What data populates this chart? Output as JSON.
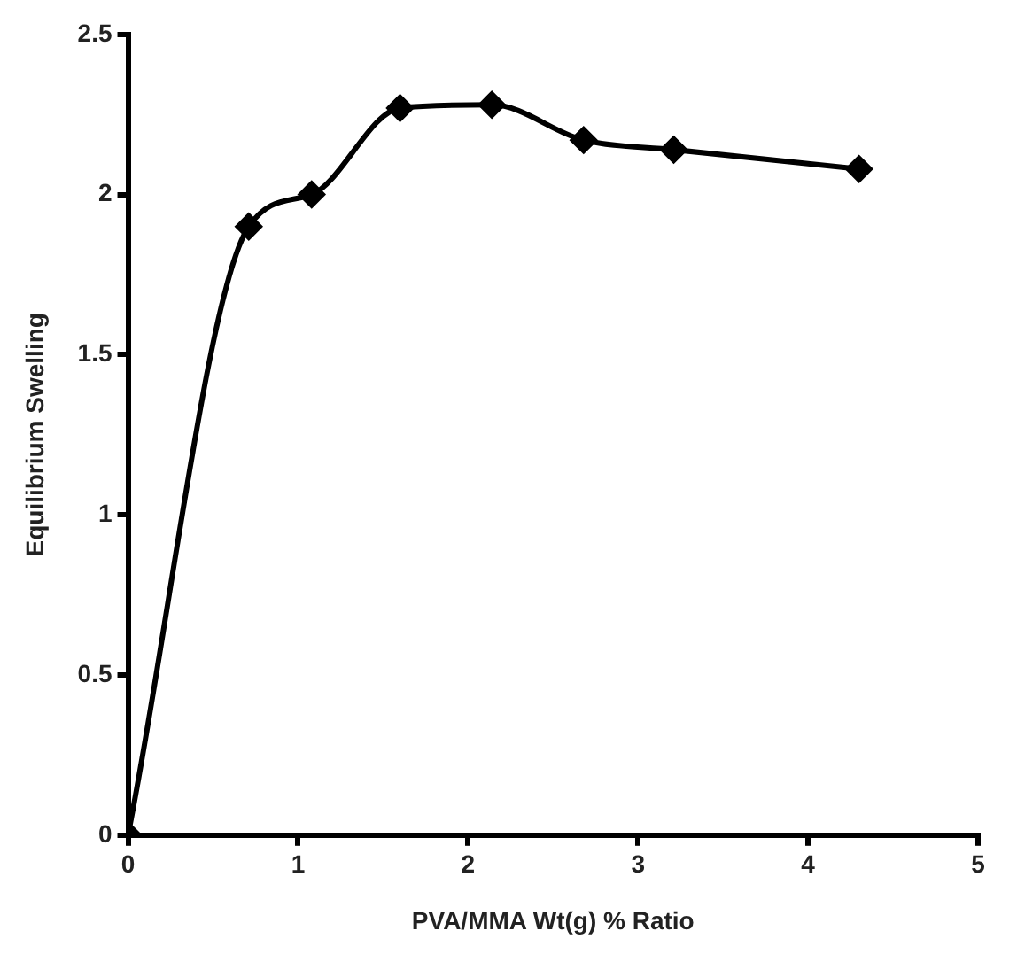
{
  "chart_data": {
    "type": "line",
    "xlabel": "PVA/MMA Wt(g) % Ratio",
    "ylabel": "Equilibrium Swelling",
    "x": [
      0,
      0.71,
      1.08,
      1.6,
      2.14,
      2.68,
      3.21,
      4.3
    ],
    "series": [
      {
        "color": "#000000",
        "values": [
          0,
          1.9,
          2.0,
          2.27,
          2.28,
          2.17,
          2.14,
          2.08
        ]
      }
    ],
    "xlim": [
      0,
      5
    ],
    "xticks": [
      0,
      1,
      2,
      3,
      4,
      5
    ],
    "ylim": [
      0,
      2.5
    ],
    "yticks": [
      0,
      0.5,
      1,
      1.5,
      2,
      2.5
    ],
    "grid": false,
    "legend": false,
    "marker": "diamond",
    "line_style": "solid"
  }
}
